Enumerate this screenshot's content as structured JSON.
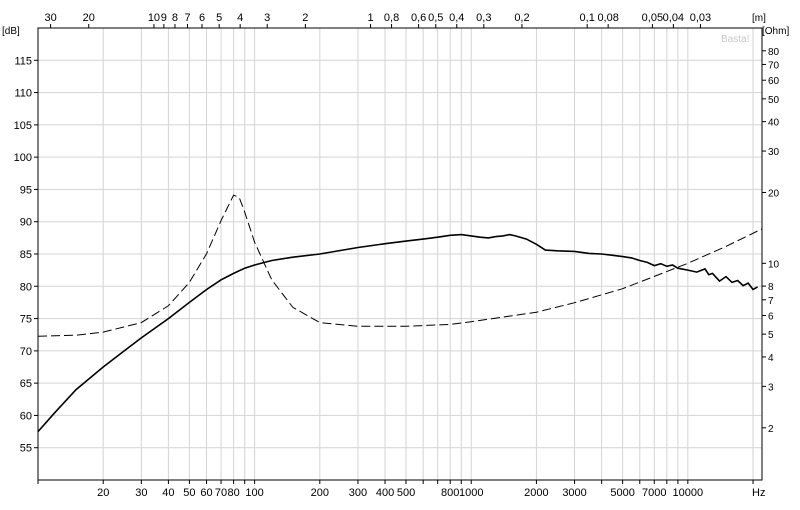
{
  "chart_data": {
    "type": "line",
    "watermark": "Basta!",
    "x_axis": {
      "unit": "Hz",
      "scale": "log",
      "range": [
        10,
        22000
      ],
      "ticks": [
        {
          "v": 20,
          "label": "20"
        },
        {
          "v": 30,
          "label": "30"
        },
        {
          "v": 40,
          "label": "40"
        },
        {
          "v": 50,
          "label": "50"
        },
        {
          "v": 60,
          "label": "60"
        },
        {
          "v": 70,
          "label": "70"
        },
        {
          "v": 80,
          "label": "80"
        },
        {
          "v": 100,
          "label": "100"
        },
        {
          "v": 200,
          "label": "200"
        },
        {
          "v": 300,
          "label": "300"
        },
        {
          "v": 400,
          "label": "400"
        },
        {
          "v": 500,
          "label": "500"
        },
        {
          "v": 800,
          "label": "800"
        },
        {
          "v": 1000,
          "label": "1000"
        },
        {
          "v": 2000,
          "label": "2000"
        },
        {
          "v": 3000,
          "label": "3000"
        },
        {
          "v": 5000,
          "label": "5000"
        },
        {
          "v": 7000,
          "label": "7000"
        },
        {
          "v": 10000,
          "label": "10000"
        }
      ]
    },
    "top_axis": {
      "unit": "[m]",
      "ticks": [
        {
          "label": "30"
        },
        {
          "label": "20"
        },
        {
          "label": "10"
        },
        {
          "label": "9"
        },
        {
          "label": "8"
        },
        {
          "label": "7"
        },
        {
          "label": "6"
        },
        {
          "label": "5"
        },
        {
          "label": "4"
        },
        {
          "label": "3"
        },
        {
          "label": "2"
        },
        {
          "label": "1"
        },
        {
          "label": "0,8"
        },
        {
          "label": "0,6"
        },
        {
          "label": "0,5"
        },
        {
          "label": "0,4"
        },
        {
          "label": "0,3"
        },
        {
          "label": "0,2"
        },
        {
          "label": "0,1"
        },
        {
          "label": "0,08"
        },
        {
          "label": "0,05"
        },
        {
          "label": "0,04"
        },
        {
          "label": "0,03"
        }
      ]
    },
    "y_axis": {
      "unit": "[dB]",
      "range": [
        50,
        120
      ],
      "ticks": [
        {
          "v": 55,
          "label": "55"
        },
        {
          "v": 60,
          "label": "60"
        },
        {
          "v": 65,
          "label": "65"
        },
        {
          "v": 70,
          "label": "70"
        },
        {
          "v": 75,
          "label": "75"
        },
        {
          "v": 80,
          "label": "80"
        },
        {
          "v": 85,
          "label": "85"
        },
        {
          "v": 90,
          "label": "90"
        },
        {
          "v": 95,
          "label": "95"
        },
        {
          "v": 100,
          "label": "100"
        },
        {
          "v": 105,
          "label": "105"
        },
        {
          "v": 110,
          "label": "110"
        },
        {
          "v": 115,
          "label": "115"
        }
      ]
    },
    "y2_axis": {
      "unit": "[Ohm]",
      "scale": "log",
      "range": [
        1.2,
        100
      ],
      "ticks": [
        {
          "v": 2,
          "label": "2"
        },
        {
          "v": 3,
          "label": "3"
        },
        {
          "v": 4,
          "label": "4"
        },
        {
          "v": 5,
          "label": "5"
        },
        {
          "v": 6,
          "label": "6"
        },
        {
          "v": 7,
          "label": "7"
        },
        {
          "v": 8,
          "label": "8"
        },
        {
          "v": 10,
          "label": "10"
        },
        {
          "v": 20,
          "label": "20"
        },
        {
          "v": 30,
          "label": "30"
        },
        {
          "v": 40,
          "label": "40"
        },
        {
          "v": 50,
          "label": "50"
        },
        {
          "v": 60,
          "label": "60"
        },
        {
          "v": 70,
          "label": "70"
        },
        {
          "v": 80,
          "label": "80"
        }
      ]
    },
    "series": [
      {
        "axis": "dB",
        "style": "solid",
        "color": "#000000",
        "points": [
          [
            10,
            57.5
          ],
          [
            12,
            60.5
          ],
          [
            15,
            64
          ],
          [
            20,
            67.5
          ],
          [
            25,
            70
          ],
          [
            30,
            72
          ],
          [
            40,
            75
          ],
          [
            50,
            77.5
          ],
          [
            60,
            79.5
          ],
          [
            70,
            81
          ],
          [
            80,
            82
          ],
          [
            90,
            82.8
          ],
          [
            100,
            83.3
          ],
          [
            120,
            84
          ],
          [
            150,
            84.5
          ],
          [
            200,
            85
          ],
          [
            300,
            86
          ],
          [
            400,
            86.6
          ],
          [
            500,
            87
          ],
          [
            600,
            87.3
          ],
          [
            700,
            87.6
          ],
          [
            800,
            87.9
          ],
          [
            900,
            88
          ],
          [
            1000,
            87.8
          ],
          [
            1100,
            87.6
          ],
          [
            1200,
            87.5
          ],
          [
            1300,
            87.7
          ],
          [
            1400,
            87.8
          ],
          [
            1500,
            88
          ],
          [
            1600,
            87.8
          ],
          [
            1800,
            87.3
          ],
          [
            2000,
            86.5
          ],
          [
            2200,
            85.6
          ],
          [
            2500,
            85.5
          ],
          [
            3000,
            85.4
          ],
          [
            3500,
            85.1
          ],
          [
            4000,
            85
          ],
          [
            4500,
            84.8
          ],
          [
            5000,
            84.6
          ],
          [
            5500,
            84.4
          ],
          [
            6000,
            84
          ],
          [
            6500,
            83.7
          ],
          [
            7000,
            83.2
          ],
          [
            7500,
            83.5
          ],
          [
            8000,
            83.1
          ],
          [
            8500,
            83.3
          ],
          [
            9000,
            82.8
          ],
          [
            10000,
            82.5
          ],
          [
            11000,
            82.2
          ],
          [
            12000,
            82.7
          ],
          [
            12500,
            81.8
          ],
          [
            13000,
            82
          ],
          [
            14000,
            80.8
          ],
          [
            15000,
            81.5
          ],
          [
            16000,
            80.6
          ],
          [
            17000,
            80.9
          ],
          [
            18000,
            80.1
          ],
          [
            19000,
            80.5
          ],
          [
            20000,
            79.5
          ],
          [
            21000,
            79.9
          ]
        ]
      },
      {
        "axis": "Ohm",
        "style": "dashed",
        "color": "#000000",
        "points": [
          [
            10,
            4.9
          ],
          [
            15,
            4.95
          ],
          [
            20,
            5.1
          ],
          [
            30,
            5.6
          ],
          [
            40,
            6.6
          ],
          [
            50,
            8.3
          ],
          [
            60,
            11
          ],
          [
            70,
            15.2
          ],
          [
            80,
            19.5
          ],
          [
            85,
            19
          ],
          [
            90,
            16.5
          ],
          [
            100,
            12.3
          ],
          [
            120,
            8.5
          ],
          [
            150,
            6.5
          ],
          [
            200,
            5.6
          ],
          [
            300,
            5.4
          ],
          [
            500,
            5.4
          ],
          [
            800,
            5.5
          ],
          [
            1000,
            5.65
          ],
          [
            2000,
            6.2
          ],
          [
            3000,
            6.8
          ],
          [
            5000,
            7.8
          ],
          [
            7000,
            8.8
          ],
          [
            10000,
            10
          ],
          [
            15000,
            11.8
          ],
          [
            22000,
            14
          ]
        ]
      }
    ]
  }
}
